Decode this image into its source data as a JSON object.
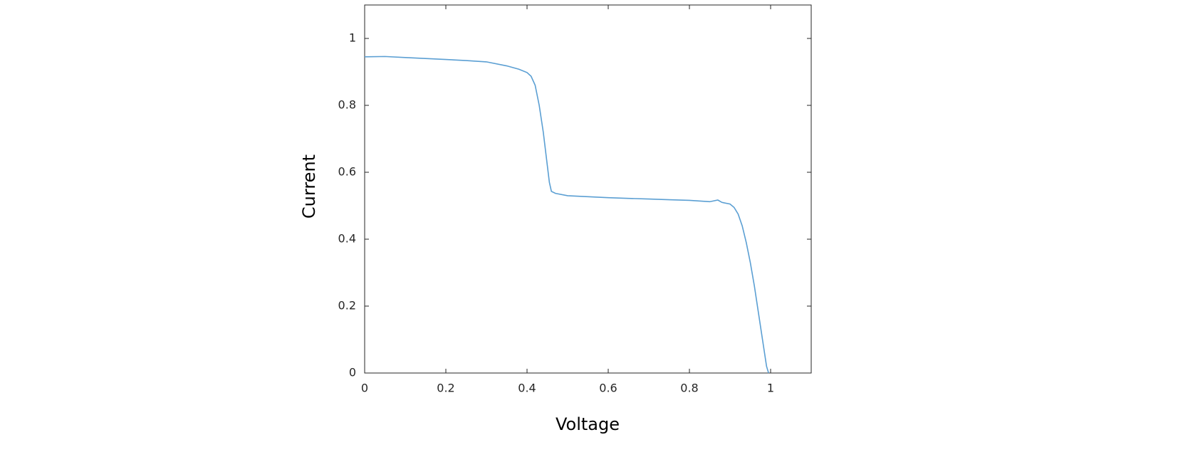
{
  "chart_data": {
    "type": "line",
    "xlabel": "Voltage",
    "ylabel": "Current",
    "x": [
      0,
      0.05,
      0.1,
      0.15,
      0.2,
      0.25,
      0.3,
      0.35,
      0.38,
      0.4,
      0.41,
      0.42,
      0.43,
      0.44,
      0.45,
      0.455,
      0.46,
      0.47,
      0.5,
      0.55,
      0.6,
      0.65,
      0.7,
      0.75,
      0.8,
      0.85,
      0.87,
      0.88,
      0.9,
      0.91,
      0.92,
      0.93,
      0.94,
      0.95,
      0.96,
      0.97,
      0.98,
      0.99,
      0.995
    ],
    "series": [
      {
        "color": "#5b9fd3",
        "values": [
          0.945,
          0.946,
          0.943,
          0.94,
          0.937,
          0.934,
          0.93,
          0.918,
          0.908,
          0.898,
          0.887,
          0.86,
          0.8,
          0.72,
          0.62,
          0.57,
          0.543,
          0.537,
          0.53,
          0.527,
          0.524,
          0.522,
          0.52,
          0.518,
          0.516,
          0.512,
          0.517,
          0.51,
          0.505,
          0.495,
          0.475,
          0.44,
          0.39,
          0.33,
          0.26,
          0.18,
          0.1,
          0.02,
          0
        ]
      }
    ],
    "xlim": [
      0,
      1.1
    ],
    "ylim": [
      0,
      1.1
    ],
    "xticks": [
      0,
      0.2,
      0.4,
      0.6,
      0.8,
      1
    ],
    "yticks": [
      0,
      0.2,
      0.4,
      0.6,
      0.8,
      1
    ]
  }
}
